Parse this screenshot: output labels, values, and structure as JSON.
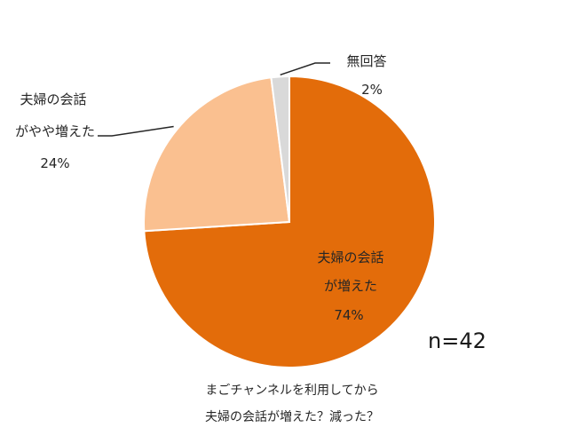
{
  "chart_data": {
    "type": "pie",
    "slices": [
      {
        "label_lines": [
          "夫婦の会話",
          "が増えた"
        ],
        "value": 74,
        "value_text": "74%",
        "color": "#e36c0a"
      },
      {
        "label_lines": [
          "夫婦の会話",
          "がやや増えた"
        ],
        "value": 24,
        "value_text": "24%",
        "color": "#fac090"
      },
      {
        "label_lines": [
          "無回答"
        ],
        "value": 2,
        "value_text": "2%",
        "color": "#d9d9d9"
      }
    ],
    "sample_size": "n=42",
    "caption_lines": [
      "まごチャンネルを利用してから",
      "夫婦の会話が増えた？減った？"
    ]
  }
}
